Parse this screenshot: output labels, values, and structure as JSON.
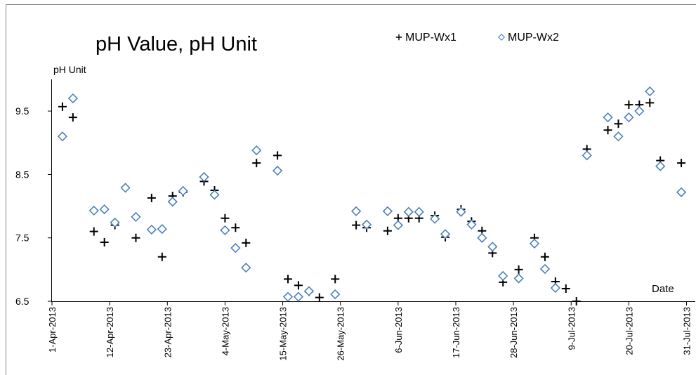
{
  "chart_data": {
    "type": "scatter",
    "title": "pH Value, pH Unit",
    "y_label": "pH Unit",
    "x_label": "Date",
    "xlim": [
      "2013-04-01",
      "2013-08-01"
    ],
    "xticks": [
      {
        "value": "2013-04-01",
        "label": "1-Apr-2013"
      },
      {
        "value": "2013-04-12",
        "label": "12-Apr-2013"
      },
      {
        "value": "2013-04-23",
        "label": "23-Apr-2013"
      },
      {
        "value": "2013-05-04",
        "label": "4-May-2013"
      },
      {
        "value": "2013-05-15",
        "label": "15-May-2013"
      },
      {
        "value": "2013-05-26",
        "label": "26-May-2013"
      },
      {
        "value": "2013-06-06",
        "label": "6-Jun-2013"
      },
      {
        "value": "2013-06-17",
        "label": "17-Jun-2013"
      },
      {
        "value": "2013-06-28",
        "label": "28-Jun-2013"
      },
      {
        "value": "2013-07-09",
        "label": "9-Jul-2013"
      },
      {
        "value": "2013-07-20",
        "label": "20-Jul-2013"
      },
      {
        "value": "2013-07-31",
        "label": "31-Jul-2013"
      }
    ],
    "ylim": [
      6.5,
      10
    ],
    "yticks": [
      6.5,
      7.5,
      8.5,
      9.5
    ],
    "grid": false,
    "series": [
      {
        "name": "MUP-Wx1",
        "color": "#000000",
        "marker": "plus",
        "x": [
          "2013-04-03",
          "2013-04-05",
          "2013-04-09",
          "2013-04-11",
          "2013-04-13",
          "2013-04-15",
          "2013-04-17",
          "2013-04-20",
          "2013-04-22",
          "2013-04-24",
          "2013-04-26",
          "2013-04-30",
          "2013-05-02",
          "2013-05-04",
          "2013-05-06",
          "2013-05-08",
          "2013-05-10",
          "2013-05-14",
          "2013-05-16",
          "2013-05-18",
          "2013-05-20",
          "2013-05-22",
          "2013-05-25",
          "2013-05-29",
          "2013-05-31",
          "2013-06-04",
          "2013-06-06",
          "2013-06-08",
          "2013-06-10",
          "2013-06-13",
          "2013-06-15",
          "2013-06-18",
          "2013-06-20",
          "2013-06-22",
          "2013-06-24",
          "2013-06-26",
          "2013-06-29",
          "2013-07-02",
          "2013-07-04",
          "2013-07-06",
          "2013-07-08",
          "2013-07-10",
          "2013-07-12",
          "2013-07-16",
          "2013-07-18",
          "2013-07-20",
          "2013-07-22",
          "2013-07-24",
          "2013-07-26",
          "2013-07-30"
        ],
        "values": [
          9.57,
          9.4,
          7.6,
          7.43,
          7.7,
          8.29,
          7.5,
          8.13,
          7.2,
          8.16,
          8.22,
          8.39,
          8.25,
          7.81,
          7.66,
          7.42,
          8.68,
          8.8,
          6.85,
          6.75,
          6.65,
          6.56,
          6.85,
          7.7,
          7.66,
          7.61,
          7.81,
          7.81,
          7.81,
          7.85,
          7.51,
          7.95,
          7.76,
          7.61,
          7.26,
          6.8,
          7.0,
          7.5,
          7.2,
          6.81,
          6.7,
          6.5,
          8.9,
          9.2,
          9.3,
          9.6,
          9.6,
          9.63,
          8.72,
          8.68
        ]
      },
      {
        "name": "MUP-Wx2",
        "color": "#4f81bd",
        "marker": "diamond",
        "x": [
          "2013-04-03",
          "2013-04-05",
          "2013-04-09",
          "2013-04-11",
          "2013-04-13",
          "2013-04-15",
          "2013-04-17",
          "2013-04-20",
          "2013-04-22",
          "2013-04-24",
          "2013-04-26",
          "2013-04-30",
          "2013-05-02",
          "2013-05-04",
          "2013-05-06",
          "2013-05-08",
          "2013-05-10",
          "2013-05-14",
          "2013-05-16",
          "2013-05-18",
          "2013-05-20",
          "2013-05-25",
          "2013-05-29",
          "2013-05-31",
          "2013-06-04",
          "2013-06-06",
          "2013-06-08",
          "2013-06-10",
          "2013-06-13",
          "2013-06-15",
          "2013-06-18",
          "2013-06-20",
          "2013-06-22",
          "2013-06-24",
          "2013-06-26",
          "2013-06-29",
          "2013-07-02",
          "2013-07-04",
          "2013-07-06",
          "2013-07-12",
          "2013-07-16",
          "2013-07-18",
          "2013-07-20",
          "2013-07-22",
          "2013-07-24",
          "2013-07-26",
          "2013-07-30"
        ],
        "values": [
          9.1,
          9.7,
          7.93,
          7.95,
          7.74,
          8.29,
          7.83,
          7.63,
          7.64,
          8.07,
          8.24,
          8.46,
          8.18,
          7.62,
          7.34,
          7.03,
          8.88,
          8.56,
          6.57,
          6.57,
          6.66,
          6.61,
          7.92,
          7.71,
          7.92,
          7.7,
          7.91,
          7.91,
          7.8,
          7.56,
          7.91,
          7.71,
          7.5,
          7.36,
          6.9,
          6.86,
          7.41,
          7.01,
          6.71,
          8.8,
          9.4,
          9.1,
          9.4,
          9.5,
          9.81,
          8.63,
          8.22
        ]
      }
    ]
  }
}
